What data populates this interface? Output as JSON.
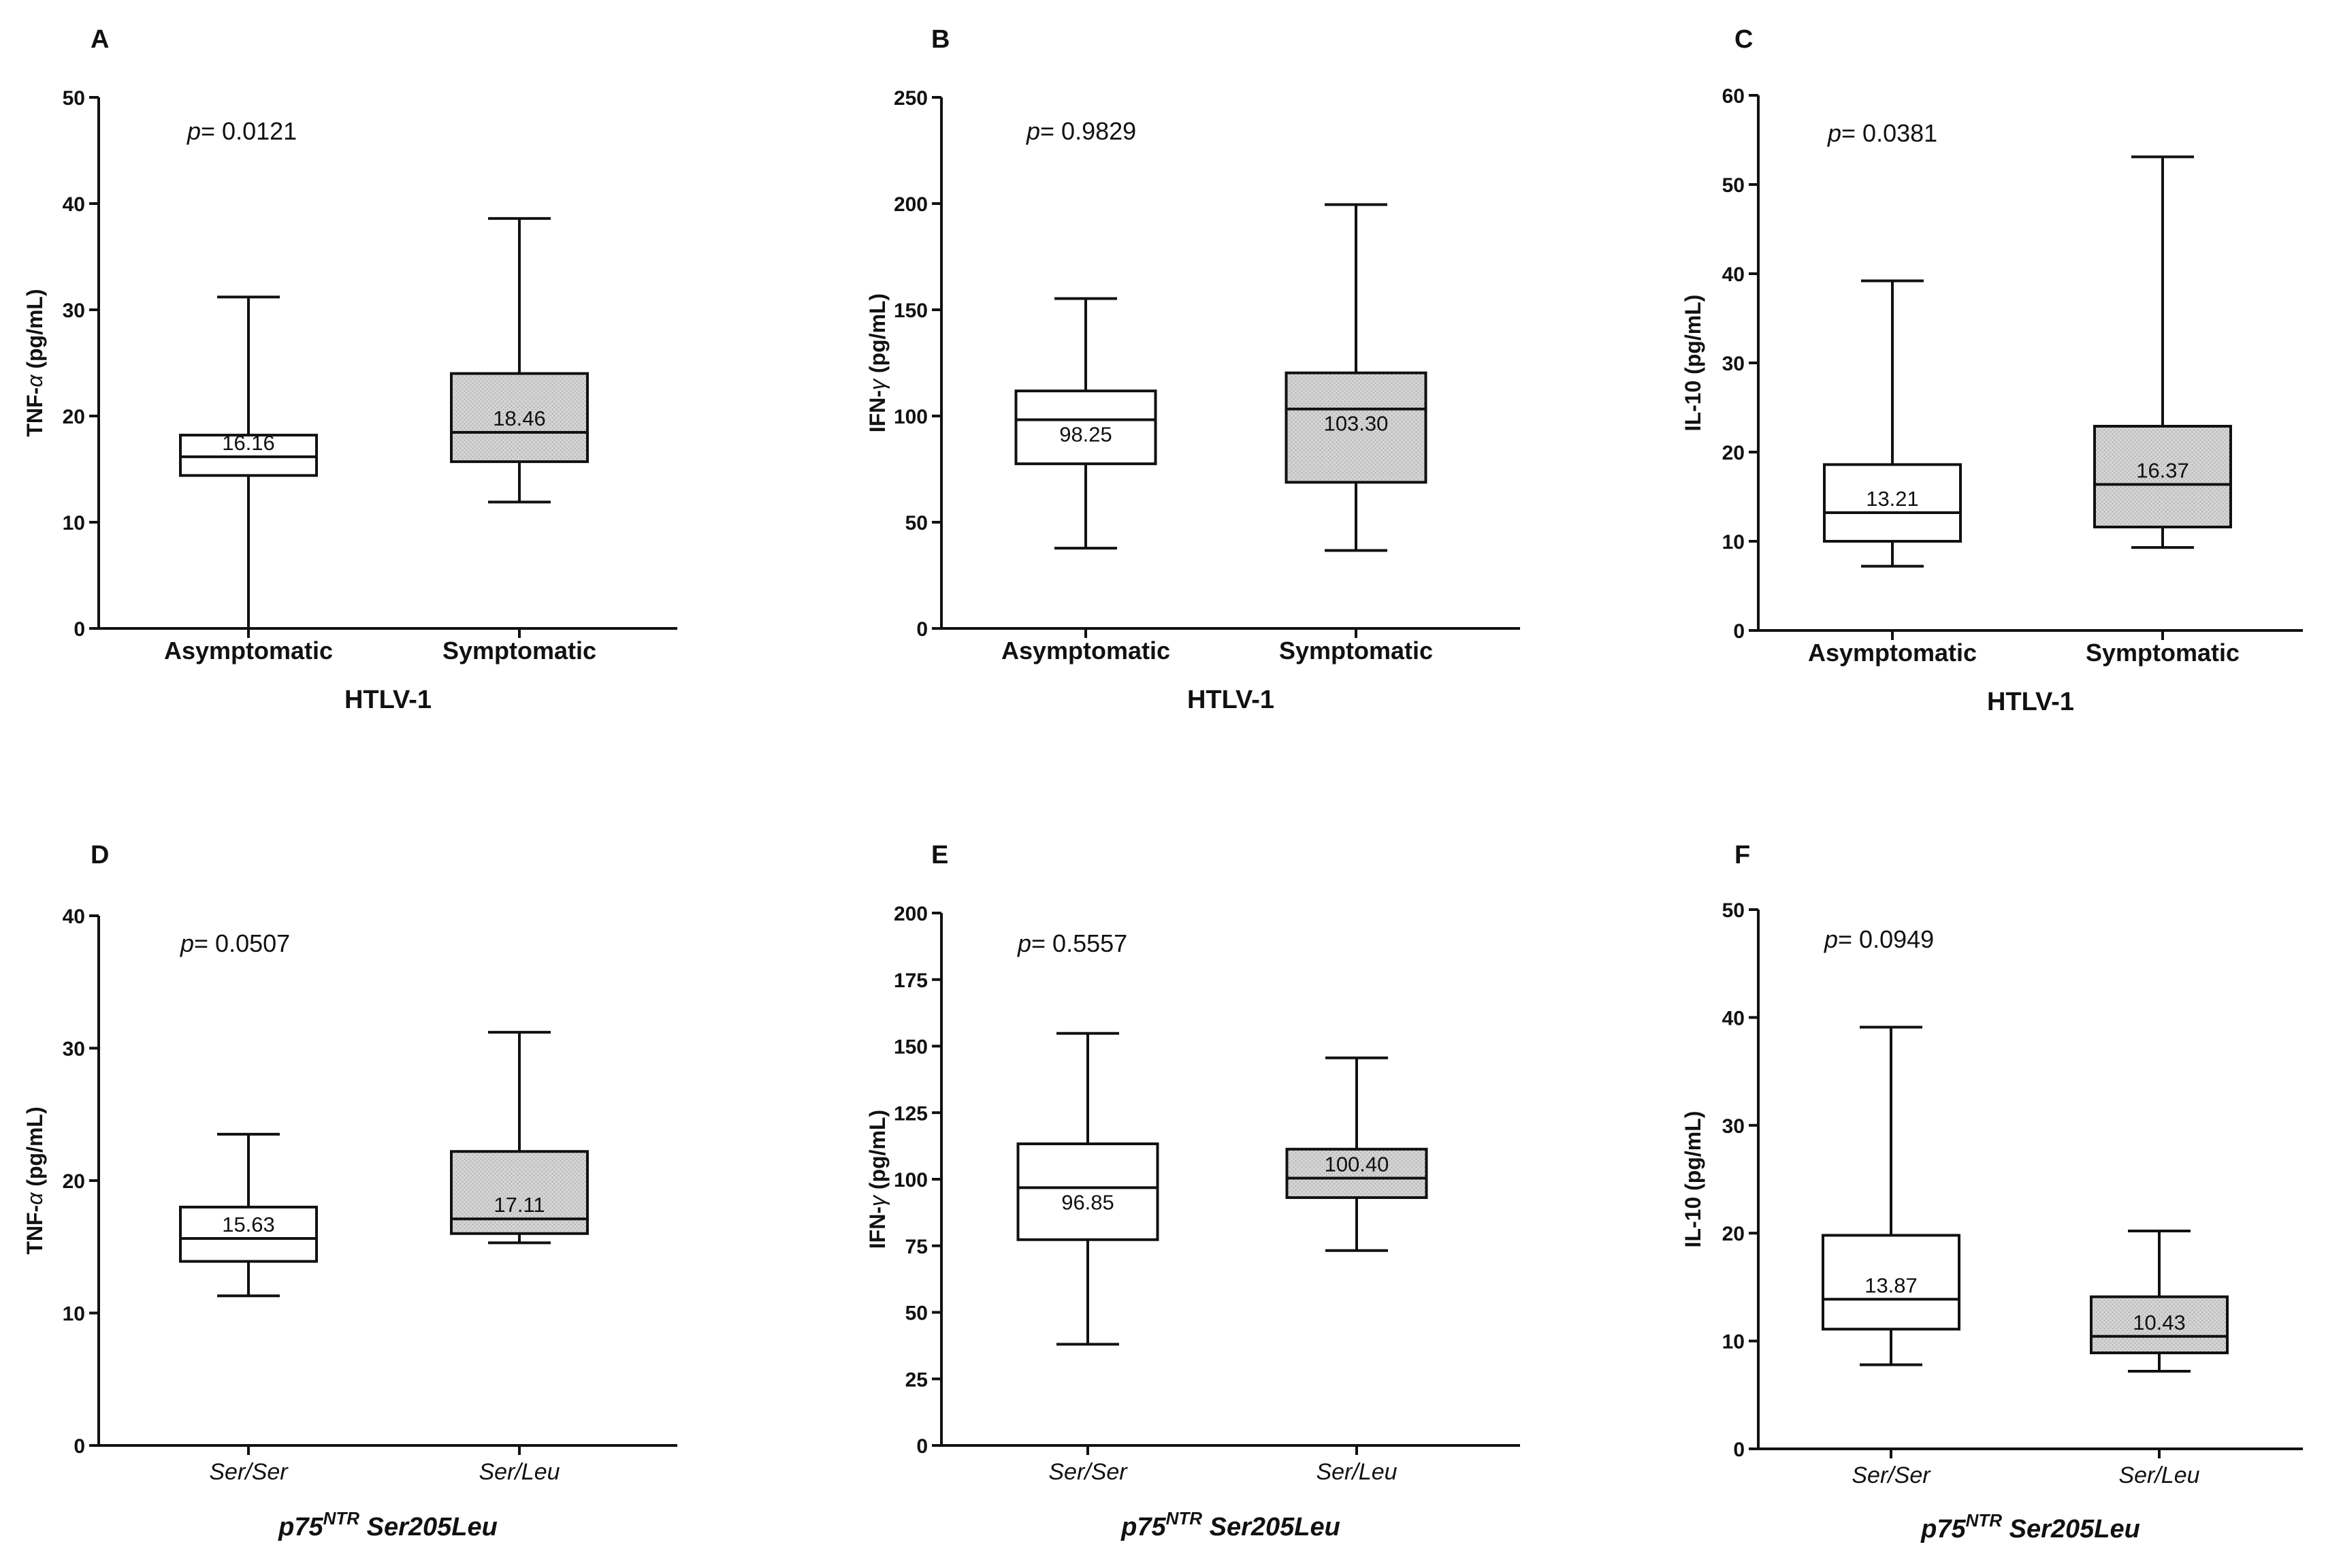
{
  "chart_data": [
    {
      "panel": "A",
      "type": "box",
      "ylabel_prefix": "TNF-",
      "ylabel_greek": "α",
      "ylabel_suffix": " (pg/mL)",
      "ylim": [
        0,
        50
      ],
      "yticks": [
        0,
        10,
        20,
        30,
        40,
        50
      ],
      "p_prefix": "p",
      "p_value": "= 0.0121",
      "categories": [
        "Asymptomatic",
        "Symptomatic"
      ],
      "category_style": "bold",
      "xlabel": "HTLV-1",
      "xlabel_sup": "",
      "xlabel_rest": "",
      "boxes": [
        {
          "min": 0,
          "q1": 14.4,
          "median": 16.16,
          "q3": 18.2,
          "max": 31.2,
          "label": "16.16",
          "fill": "#ffffff"
        },
        {
          "min": 11.9,
          "q1": 15.7,
          "median": 18.46,
          "q3": 24.0,
          "max": 38.6,
          "label": "18.46",
          "fill": "#d2d2d2"
        }
      ]
    },
    {
      "panel": "B",
      "type": "box",
      "ylabel_prefix": "IFN-",
      "ylabel_greek": "γ",
      "ylabel_suffix": " (pg/mL)",
      "ylim": [
        0,
        250
      ],
      "yticks": [
        0,
        50,
        100,
        150,
        200,
        250
      ],
      "p_prefix": "p",
      "p_value": "= 0.9829",
      "categories": [
        "Asymptomatic",
        "Symptomatic"
      ],
      "category_style": "bold",
      "xlabel": "HTLV-1",
      "xlabel_sup": "",
      "xlabel_rest": "",
      "boxes": [
        {
          "min": 37.8,
          "q1": 77.5,
          "median": 98.25,
          "q3": 111.8,
          "max": 155.3,
          "label": "98.25",
          "fill": "#ffffff"
        },
        {
          "min": 36.7,
          "q1": 68.8,
          "median": 103.3,
          "q3": 120.3,
          "max": 199.5,
          "label": "103.30",
          "fill": "#d2d2d2"
        }
      ]
    },
    {
      "panel": "C",
      "type": "box",
      "ylabel_prefix": "IL-10 (pg/mL)",
      "ylabel_greek": "",
      "ylabel_suffix": "",
      "ylim": [
        0,
        60
      ],
      "yticks": [
        0,
        10,
        20,
        30,
        40,
        50,
        60
      ],
      "p_prefix": "p",
      "p_value": "= 0.0381",
      "categories": [
        "Asymptomatic",
        "Symptomatic"
      ],
      "category_style": "bold",
      "xlabel": "HTLV-1",
      "xlabel_sup": "",
      "xlabel_rest": "",
      "boxes": [
        {
          "min": 7.2,
          "q1": 10.0,
          "median": 13.21,
          "q3": 18.6,
          "max": 39.2,
          "label": "13.21",
          "fill": "#ffffff"
        },
        {
          "min": 9.3,
          "q1": 11.6,
          "median": 16.37,
          "q3": 22.9,
          "max": 53.1,
          "label": "16.37",
          "fill": "#d2d2d2"
        }
      ]
    },
    {
      "panel": "D",
      "type": "box",
      "ylabel_prefix": "TNF-",
      "ylabel_greek": "α",
      "ylabel_suffix": " (pg/mL)",
      "ylim": [
        0,
        40
      ],
      "yticks": [
        0,
        10,
        20,
        30,
        40
      ],
      "p_prefix": "p",
      "p_value": "= 0.0507",
      "categories": [
        "Ser/Ser",
        "Ser/Leu"
      ],
      "category_style": "italic",
      "xlabel": "p75",
      "xlabel_sup": "NTR",
      "xlabel_rest": " Ser205Leu",
      "boxes": [
        {
          "min": 11.3,
          "q1": 13.9,
          "median": 15.63,
          "q3": 18.0,
          "max": 23.5,
          "label": "15.63",
          "fill": "#ffffff"
        },
        {
          "min": 15.3,
          "q1": 16.0,
          "median": 17.11,
          "q3": 22.2,
          "max": 31.2,
          "label": "17.11",
          "fill": "#d2d2d2"
        }
      ]
    },
    {
      "panel": "E",
      "type": "box",
      "ylabel_prefix": "IFN-",
      "ylabel_greek": "γ",
      "ylabel_suffix": " (pg/mL)",
      "ylim": [
        0,
        200
      ],
      "yticks": [
        0,
        25,
        50,
        75,
        100,
        125,
        150,
        175,
        200
      ],
      "p_prefix": "p",
      "p_value": "= 0.5557",
      "categories": [
        "Ser/Ser",
        "Ser/Leu"
      ],
      "category_style": "italic",
      "xlabel": "p75",
      "xlabel_sup": "NTR",
      "xlabel_rest": " Ser205Leu",
      "boxes": [
        {
          "min": 38.0,
          "q1": 77.3,
          "median": 96.85,
          "q3": 113.3,
          "max": 154.8,
          "label": "96.85",
          "fill": "#ffffff"
        },
        {
          "min": 73.2,
          "q1": 93.1,
          "median": 100.4,
          "q3": 111.3,
          "max": 145.6,
          "label": "100.40",
          "fill": "#d2d2d2"
        }
      ]
    },
    {
      "panel": "F",
      "type": "box",
      "ylabel_prefix": "IL-10 (pg/mL)",
      "ylabel_greek": "",
      "ylabel_suffix": "",
      "ylim": [
        0,
        50
      ],
      "yticks": [
        0,
        10,
        20,
        30,
        40,
        50
      ],
      "p_prefix": "p",
      "p_value": "= 0.0949",
      "categories": [
        "Ser/Ser",
        "Ser/Leu"
      ],
      "category_style": "italic",
      "xlabel": "p75",
      "xlabel_sup": "NTR",
      "xlabel_rest": " Ser205Leu",
      "boxes": [
        {
          "min": 7.8,
          "q1": 11.1,
          "median": 13.87,
          "q3": 19.8,
          "max": 39.1,
          "label": "13.87",
          "fill": "#ffffff"
        },
        {
          "min": 7.2,
          "q1": 8.9,
          "median": 10.43,
          "q3": 14.1,
          "max": 20.2,
          "label": "10.43",
          "fill": "#d2d2d2"
        }
      ]
    }
  ]
}
